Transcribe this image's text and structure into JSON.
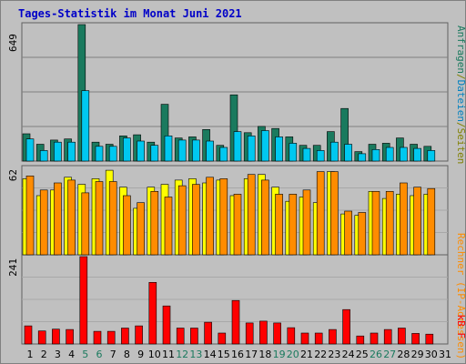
{
  "chart_title": "Tages-Statistik im Monat Juni 2021",
  "colors": {
    "background": "#c0c0c0",
    "title": "#0000c8",
    "hits": "#1a7a5e",
    "files": "#00c8f0",
    "pages": "#ffff00",
    "visits": "#ff8c00",
    "kbytes": "#ff0000",
    "weekend_label": "#1a7a5e",
    "weekday_label": "#000000"
  },
  "chart_data": [
    {
      "type": "bar",
      "name": "hits-files",
      "title": "",
      "ylabel_top": "649",
      "side_labels": [
        {
          "text": "Anfragen",
          "color": "#1a7a5e"
        },
        {
          "text": "/",
          "color": "#808000"
        },
        {
          "text": "Dateien",
          "color": "#0080c0"
        },
        {
          "text": "/",
          "color": "#808000"
        },
        {
          "text": "Seiten",
          "color": "#808000"
        }
      ],
      "ylim": [
        0,
        649
      ],
      "x": [
        1,
        2,
        3,
        4,
        5,
        6,
        7,
        8,
        9,
        10,
        11,
        12,
        13,
        14,
        15,
        16,
        17,
        18,
        19,
        20,
        21,
        22,
        23,
        24,
        25,
        26,
        27,
        28,
        29,
        30,
        31
      ],
      "series": [
        {
          "name": "Anfragen",
          "color": "#1a7a5e",
          "values": [
            130,
            80,
            100,
            105,
            649,
            90,
            80,
            120,
            125,
            90,
            270,
            110,
            115,
            150,
            75,
            315,
            135,
            165,
            155,
            115,
            75,
            75,
            140,
            250,
            45,
            80,
            85,
            110,
            80,
            70,
            0
          ]
        },
        {
          "name": "Dateien",
          "color": "#00c8f0",
          "values": [
            105,
            50,
            90,
            90,
            335,
            70,
            70,
            110,
            95,
            75,
            120,
            100,
            100,
            95,
            65,
            140,
            120,
            145,
            115,
            85,
            60,
            50,
            90,
            80,
            35,
            55,
            65,
            65,
            60,
            50,
            0
          ]
        }
      ]
    },
    {
      "type": "bar",
      "name": "pages-visits",
      "ylabel_top": "62",
      "side_labels": [
        {
          "text": "Rechner (IP-Adressen)",
          "color": "#ff8c00"
        }
      ],
      "ylim": [
        0,
        62
      ],
      "x": [
        1,
        2,
        3,
        4,
        5,
        6,
        7,
        8,
        9,
        10,
        11,
        12,
        13,
        14,
        15,
        16,
        17,
        18,
        19,
        20,
        21,
        22,
        23,
        24,
        25,
        26,
        27,
        28,
        29,
        30,
        31
      ],
      "series": [
        {
          "name": "Seiten",
          "color": "#ffff00",
          "values": [
            54,
            42,
            46,
            55,
            50,
            54,
            60,
            48,
            33,
            48,
            50,
            53,
            54,
            51,
            53,
            42,
            54,
            57,
            48,
            38,
            41,
            37,
            59,
            29,
            28,
            45,
            40,
            43,
            42,
            43,
            0
          ]
        },
        {
          "name": "Rechner",
          "color": "#ff8c00",
          "values": [
            56,
            46,
            51,
            53,
            44,
            52,
            52,
            42,
            37,
            45,
            41,
            49,
            50,
            55,
            54,
            43,
            57,
            53,
            43,
            43,
            46,
            59,
            59,
            31,
            30,
            45,
            45,
            51,
            48,
            47,
            0
          ]
        }
      ]
    },
    {
      "type": "bar",
      "name": "kbytes",
      "ylabel_top": "241",
      "side_labels": [
        {
          "text": "kB F",
          "color": "#ff0000"
        }
      ],
      "ylim": [
        0,
        241
      ],
      "x": [
        1,
        2,
        3,
        4,
        5,
        6,
        7,
        8,
        9,
        10,
        11,
        12,
        13,
        14,
        15,
        16,
        17,
        18,
        19,
        20,
        21,
        22,
        23,
        24,
        25,
        26,
        27,
        28,
        29,
        30,
        31
      ],
      "series": [
        {
          "name": "kB F",
          "color": "#ff0000",
          "values": [
            50,
            36,
            41,
            40,
            241,
            35,
            35,
            44,
            50,
            170,
            105,
            44,
            44,
            60,
            30,
            120,
            58,
            63,
            58,
            45,
            30,
            30,
            40,
            95,
            22,
            30,
            40,
            44,
            29,
            27,
            0
          ]
        }
      ]
    }
  ],
  "x_tick_labels": [
    "1",
    "2",
    "3",
    "4",
    "5",
    "6",
    "7",
    "8",
    "9",
    "10",
    "11",
    "12",
    "13",
    "14",
    "15",
    "16",
    "17",
    "18",
    "19",
    "20",
    "21",
    "22",
    "23",
    "24",
    "25",
    "26",
    "27",
    "28",
    "29",
    "30",
    "31"
  ],
  "weekend_days": [
    5,
    6,
    12,
    13,
    19,
    20,
    26,
    27
  ]
}
